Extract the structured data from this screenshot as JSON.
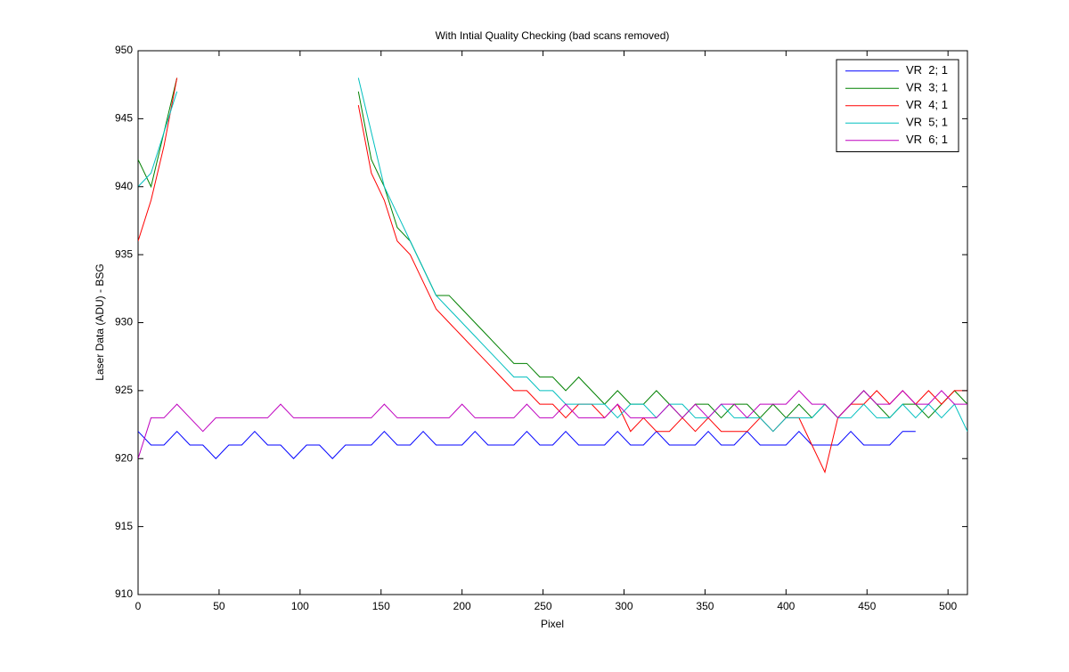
{
  "chart_data": {
    "type": "line",
    "title": "With Intial Quality Checking (bad scans removed)",
    "x_label": "Pixel",
    "y_label": "Laser Data (ADU) - BSG",
    "x": [
      0,
      8,
      16,
      24,
      32,
      40,
      48,
      56,
      64,
      72,
      80,
      88,
      96,
      104,
      112,
      120,
      128,
      136,
      144,
      152,
      160,
      168,
      176,
      184,
      192,
      200,
      208,
      216,
      224,
      232,
      240,
      248,
      256,
      264,
      272,
      280,
      288,
      296,
      304,
      312,
      320,
      328,
      336,
      344,
      352,
      360,
      368,
      376,
      384,
      392,
      400,
      408,
      416,
      424,
      432,
      440,
      448,
      456,
      464,
      472,
      480,
      488,
      496,
      504,
      512
    ],
    "series": [
      {
        "name": "VR  2; 1",
        "color": "#0000ff",
        "values": [
          922,
          921,
          921,
          922,
          921,
          921,
          920,
          921,
          921,
          922,
          921,
          921,
          920,
          921,
          921,
          920,
          921,
          921,
          921,
          922,
          921,
          921,
          922,
          921,
          921,
          921,
          922,
          921,
          921,
          921,
          922,
          921,
          921,
          922,
          921,
          921,
          921,
          922,
          921,
          921,
          922,
          921,
          921,
          921,
          922,
          921,
          921,
          922,
          921,
          921,
          921,
          922,
          921,
          921,
          921,
          922,
          921,
          921,
          921,
          922,
          922,
          null,
          null,
          null,
          null
        ]
      },
      {
        "name": "VR  3; 1",
        "color": "#008000",
        "values": [
          942,
          940,
          944,
          948,
          null,
          null,
          null,
          null,
          null,
          null,
          null,
          null,
          null,
          null,
          null,
          null,
          null,
          947,
          942,
          940,
          937,
          936,
          934,
          932,
          932,
          931,
          930,
          929,
          928,
          927,
          927,
          926,
          926,
          925,
          926,
          925,
          924,
          925,
          924,
          924,
          925,
          924,
          923,
          924,
          924,
          923,
          924,
          924,
          923,
          924,
          923,
          924,
          923,
          924,
          923,
          924,
          925,
          924,
          923,
          924,
          924,
          923,
          924,
          925,
          924
        ]
      },
      {
        "name": "VR  4; 1",
        "color": "#ff0000",
        "values": [
          936,
          939,
          943,
          948,
          null,
          null,
          null,
          null,
          null,
          null,
          null,
          null,
          null,
          null,
          null,
          null,
          null,
          946,
          941,
          939,
          936,
          935,
          933,
          931,
          930,
          929,
          928,
          927,
          926,
          925,
          925,
          924,
          924,
          923,
          924,
          924,
          923,
          924,
          922,
          923,
          922,
          922,
          923,
          922,
          923,
          922,
          922,
          922,
          923,
          922,
          923,
          923,
          921,
          919,
          923,
          924,
          924,
          925,
          924,
          925,
          924,
          925,
          924,
          925,
          925
        ]
      },
      {
        "name": "VR  5; 1",
        "color": "#00bfbf",
        "values": [
          940,
          941,
          944,
          947,
          null,
          null,
          null,
          null,
          null,
          null,
          null,
          null,
          null,
          null,
          null,
          null,
          null,
          948,
          944,
          940,
          938,
          936,
          934,
          932,
          931,
          930,
          929,
          928,
          927,
          926,
          926,
          925,
          925,
          924,
          924,
          924,
          924,
          923,
          924,
          924,
          923,
          924,
          924,
          923,
          923,
          924,
          923,
          923,
          923,
          922,
          923,
          923,
          923,
          924,
          923,
          923,
          924,
          923,
          923,
          924,
          923,
          924,
          923,
          924,
          922
        ]
      },
      {
        "name": "VR  6; 1",
        "color": "#bf00bf",
        "values": [
          920,
          923,
          923,
          924,
          923,
          922,
          923,
          923,
          923,
          923,
          923,
          924,
          923,
          923,
          923,
          923,
          923,
          923,
          923,
          924,
          923,
          923,
          923,
          923,
          923,
          924,
          923,
          923,
          923,
          923,
          924,
          923,
          923,
          924,
          923,
          923,
          923,
          924,
          923,
          923,
          923,
          924,
          923,
          924,
          923,
          924,
          924,
          923,
          924,
          924,
          924,
          925,
          924,
          924,
          923,
          924,
          925,
          924,
          924,
          925,
          924,
          924,
          925,
          924,
          924
        ]
      }
    ],
    "xlim": [
      0,
      512
    ],
    "xticks": [
      0,
      50,
      100,
      150,
      200,
      250,
      300,
      350,
      400,
      450,
      500
    ],
    "ylim": [
      910,
      950
    ],
    "yticks": [
      910,
      915,
      920,
      925,
      930,
      935,
      940,
      945,
      950
    ],
    "legend": "top-right"
  }
}
